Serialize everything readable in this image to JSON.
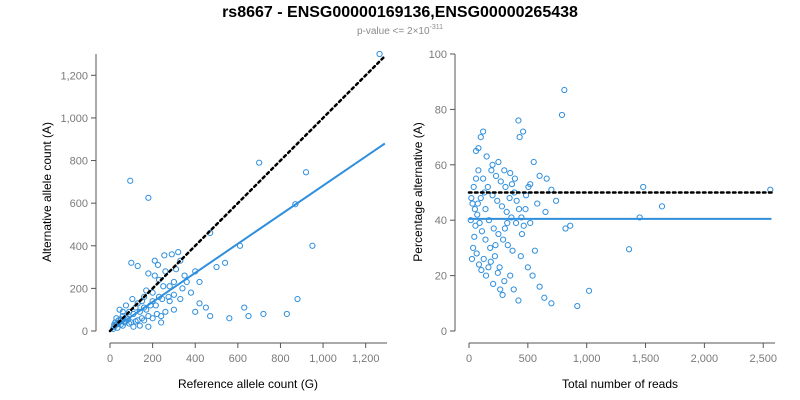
{
  "header": {
    "title": "rs8667 - ENSG00000169136,ENSG00000265438",
    "subtitle_prefix": "p-value <= 2×10",
    "subtitle_exponent": "-311"
  },
  "colors": {
    "point": "#2f8fdd",
    "fit": "#2f8fdd",
    "reference": "#000000"
  },
  "chart_data": [
    {
      "type": "scatter",
      "name": "allele-count",
      "xlabel": "Reference allele count (G)",
      "ylabel": "Alternative allele count (A)",
      "xlim": [
        0,
        1300
      ],
      "ylim": [
        0,
        1300
      ],
      "xticks": [
        0,
        200,
        400,
        600,
        800,
        1000,
        1200
      ],
      "yticks": [
        0,
        200,
        400,
        600,
        800,
        1000,
        1200
      ],
      "xtick_labels": [
        "0",
        "200",
        "400",
        "600",
        "800",
        "1,000",
        "1,200"
      ],
      "ytick_labels": [
        "0",
        "200",
        "400",
        "600",
        "800",
        "1,000",
        "1,200"
      ],
      "fit_line": {
        "from": [
          0,
          0
        ],
        "to": [
          1290,
          880
        ]
      },
      "reference_line": {
        "from": [
          0,
          0
        ],
        "to": [
          1290,
          1290
        ],
        "style": "dotted"
      },
      "points": [
        [
          1265,
          1300
        ],
        [
          700,
          790
        ],
        [
          920,
          745
        ],
        [
          95,
          705
        ],
        [
          180,
          625
        ],
        [
          870,
          595
        ],
        [
          950,
          400
        ],
        [
          610,
          400
        ],
        [
          470,
          460
        ],
        [
          320,
          370
        ],
        [
          290,
          360
        ],
        [
          255,
          355
        ],
        [
          210,
          330
        ],
        [
          225,
          310
        ],
        [
          100,
          320
        ],
        [
          130,
          305
        ],
        [
          540,
          320
        ],
        [
          500,
          300
        ],
        [
          400,
          280
        ],
        [
          350,
          260
        ],
        [
          300,
          230
        ],
        [
          250,
          210
        ],
        [
          200,
          180
        ],
        [
          230,
          160
        ],
        [
          280,
          140
        ],
        [
          330,
          150
        ],
        [
          420,
          130
        ],
        [
          450,
          110
        ],
        [
          400,
          90
        ],
        [
          470,
          70
        ],
        [
          560,
          60
        ],
        [
          630,
          110
        ],
        [
          650,
          70
        ],
        [
          720,
          80
        ],
        [
          880,
          150
        ],
        [
          830,
          80
        ],
        [
          150,
          140
        ],
        [
          120,
          110
        ],
        [
          90,
          90
        ],
        [
          60,
          70
        ],
        [
          40,
          50
        ],
        [
          30,
          30
        ],
        [
          20,
          20
        ],
        [
          110,
          80
        ],
        [
          140,
          90
        ],
        [
          170,
          100
        ],
        [
          190,
          120
        ],
        [
          160,
          160
        ],
        [
          130,
          130
        ],
        [
          80,
          60
        ],
        [
          70,
          40
        ],
        [
          50,
          30
        ],
        [
          100,
          40
        ],
        [
          130,
          50
        ],
        [
          160,
          50
        ],
        [
          200,
          60
        ],
        [
          240,
          70
        ],
        [
          60,
          90
        ],
        [
          45,
          100
        ],
        [
          210,
          260
        ],
        [
          260,
          280
        ],
        [
          310,
          290
        ],
        [
          180,
          270
        ],
        [
          230,
          240
        ],
        [
          280,
          210
        ],
        [
          340,
          200
        ],
        [
          380,
          180
        ],
        [
          300,
          100
        ],
        [
          260,
          90
        ],
        [
          220,
          80
        ],
        [
          180,
          70
        ],
        [
          150,
          60
        ],
        [
          120,
          45
        ],
        [
          90,
          35
        ],
        [
          60,
          25
        ],
        [
          35,
          15
        ],
        [
          25,
          40
        ],
        [
          15,
          10
        ],
        [
          75,
          120
        ],
        [
          105,
          150
        ],
        [
          240,
          40
        ],
        [
          180,
          20
        ],
        [
          140,
          25
        ],
        [
          110,
          20
        ],
        [
          85,
          55
        ],
        [
          65,
          45
        ],
        [
          50,
          55
        ],
        [
          35,
          35
        ],
        [
          20,
          30
        ],
        [
          30,
          60
        ],
        [
          300,
          170
        ],
        [
          360,
          230
        ],
        [
          420,
          230
        ],
        [
          330,
          330
        ],
        [
          170,
          190
        ],
        [
          200,
          140
        ],
        [
          160,
          110
        ],
        [
          215,
          120
        ],
        [
          245,
          150
        ],
        [
          275,
          160
        ]
      ]
    },
    {
      "type": "scatter",
      "name": "percentage",
      "xlabel": "Total number of reads",
      "ylabel": "Percentage alternative (A)",
      "xlim": [
        0,
        2600
      ],
      "ylim": [
        0,
        100
      ],
      "xticks": [
        0,
        500,
        1000,
        1500,
        2000,
        2500
      ],
      "yticks": [
        0,
        20,
        40,
        60,
        80,
        100
      ],
      "xtick_labels": [
        "0",
        "500",
        "1,000",
        "1,500",
        "2,000",
        "2,500"
      ],
      "ytick_labels": [
        "0",
        "20",
        "40",
        "60",
        "80",
        "100"
      ],
      "fit_line": {
        "from": [
          0,
          40.5
        ],
        "to": [
          2570,
          40.5
        ]
      },
      "reference_line": {
        "from": [
          0,
          50
        ],
        "to": [
          2570,
          50
        ],
        "style": "dotted"
      },
      "points": [
        [
          2560,
          51
        ],
        [
          1480,
          52
        ],
        [
          1640,
          45
        ],
        [
          1450,
          41
        ],
        [
          1360,
          29.5
        ],
        [
          1020,
          14.5
        ],
        [
          920,
          9
        ],
        [
          820,
          37
        ],
        [
          860,
          38
        ],
        [
          790,
          78
        ],
        [
          810,
          87
        ],
        [
          420,
          76
        ],
        [
          460,
          72
        ],
        [
          430,
          70
        ],
        [
          120,
          72
        ],
        [
          100,
          70
        ],
        [
          80,
          66
        ],
        [
          60,
          65
        ],
        [
          150,
          63
        ],
        [
          200,
          60
        ],
        [
          250,
          61
        ],
        [
          300,
          58
        ],
        [
          550,
          61
        ],
        [
          600,
          56
        ],
        [
          660,
          55
        ],
        [
          520,
          53
        ],
        [
          700,
          51
        ],
        [
          740,
          47
        ],
        [
          650,
          43
        ],
        [
          580,
          46
        ],
        [
          480,
          44
        ],
        [
          520,
          39
        ],
        [
          450,
          35
        ],
        [
          560,
          29
        ],
        [
          600,
          16
        ],
        [
          640,
          12
        ],
        [
          700,
          10
        ],
        [
          540,
          20
        ],
        [
          500,
          23
        ],
        [
          440,
          27
        ],
        [
          420,
          11
        ],
        [
          380,
          15
        ],
        [
          350,
          20
        ],
        [
          300,
          18
        ],
        [
          260,
          23
        ],
        [
          220,
          27
        ],
        [
          180,
          30
        ],
        [
          140,
          33
        ],
        [
          110,
          36
        ],
        [
          90,
          39
        ],
        [
          70,
          42
        ],
        [
          50,
          44
        ],
        [
          30,
          46
        ],
        [
          20,
          48
        ],
        [
          40,
          52
        ],
        [
          60,
          55
        ],
        [
          80,
          58
        ],
        [
          120,
          55
        ],
        [
          160,
          52
        ],
        [
          200,
          49
        ],
        [
          240,
          47
        ],
        [
          280,
          45
        ],
        [
          320,
          43
        ],
        [
          360,
          41
        ],
        [
          400,
          39
        ],
        [
          140,
          44
        ],
        [
          170,
          40
        ],
        [
          210,
          37
        ],
        [
          250,
          35
        ],
        [
          290,
          33
        ],
        [
          330,
          31
        ],
        [
          370,
          29
        ],
        [
          100,
          48
        ],
        [
          130,
          50
        ],
        [
          75,
          46
        ],
        [
          55,
          38
        ],
        [
          45,
          34
        ],
        [
          35,
          30
        ],
        [
          25,
          26
        ],
        [
          15,
          40
        ],
        [
          65,
          28
        ],
        [
          85,
          24
        ],
        [
          105,
          22
        ],
        [
          125,
          26
        ],
        [
          145,
          20
        ],
        [
          165,
          23
        ],
        [
          185,
          25
        ],
        [
          205,
          17
        ],
        [
          225,
          31
        ],
        [
          245,
          21
        ],
        [
          265,
          15
        ],
        [
          285,
          13
        ],
        [
          305,
          37
        ],
        [
          325,
          39
        ],
        [
          345,
          48
        ],
        [
          365,
          53
        ],
        [
          385,
          50
        ],
        [
          405,
          47
        ],
        [
          425,
          44
        ],
        [
          445,
          41
        ],
        [
          465,
          38
        ],
        [
          485,
          49
        ],
        [
          505,
          52
        ],
        [
          190,
          58
        ],
        [
          230,
          56
        ],
        [
          270,
          54
        ],
        [
          310,
          52
        ],
        [
          350,
          57
        ],
        [
          390,
          55
        ]
      ]
    }
  ]
}
